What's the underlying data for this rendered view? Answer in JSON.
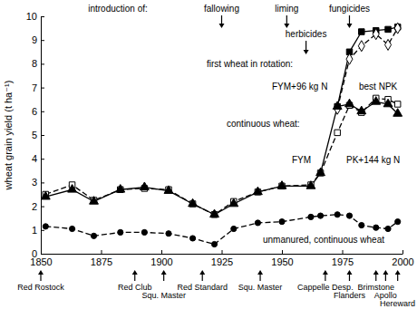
{
  "chart_data": {
    "type": "line",
    "y_label": "wheat grain yield (t ha⁻¹)",
    "xlim": [
      1850,
      2000
    ],
    "xticks": [
      1850,
      1875,
      1900,
      1925,
      1950,
      1975,
      2000
    ],
    "ylim": [
      0,
      10
    ],
    "yticks": [
      0,
      1,
      2,
      3,
      4,
      5,
      6,
      7,
      8,
      9,
      10
    ],
    "series": [
      {
        "name": "FYM+96 kg N",
        "color": "#000000",
        "marker": "square",
        "line_style": "solid",
        "x": [
          1973,
          1978,
          1983,
          1989,
          1994,
          1998
        ],
        "values": [
          6.2,
          8.5,
          9.35,
          9.4,
          9.45,
          9.55
        ]
      },
      {
        "name": "best NPK",
        "color": "#000000",
        "marker": "open-diamond",
        "line_style": "dashed",
        "x": [
          1973,
          1978,
          1983,
          1989,
          1994,
          1998
        ],
        "values": [
          6.1,
          8.2,
          8.75,
          9.25,
          8.8,
          9.5
        ]
      },
      {
        "name": "FYM",
        "color": "#000000",
        "marker": "open-square",
        "line_style": "dashed",
        "x": [
          1852,
          1863,
          1872,
          1883,
          1893,
          1903,
          1913,
          1922,
          1930,
          1940,
          1950,
          1962,
          1966,
          1973,
          1978,
          1983,
          1989,
          1994,
          1998
        ],
        "values": [
          2.5,
          2.9,
          2.25,
          2.7,
          2.75,
          2.7,
          2.1,
          1.65,
          2.2,
          2.6,
          2.85,
          2.9,
          3.4,
          5.1,
          6.25,
          5.95,
          6.55,
          6.5,
          6.3
        ]
      },
      {
        "name": "PK+144 kg N",
        "color": "#000000",
        "marker": "triangle",
        "line_style": "solid",
        "x": [
          1852,
          1863,
          1872,
          1883,
          1893,
          1903,
          1913,
          1922,
          1930,
          1940,
          1950,
          1962,
          1966,
          1973,
          1978,
          1983,
          1989,
          1994,
          1998
        ],
        "values": [
          2.4,
          2.7,
          2.2,
          2.7,
          2.8,
          2.65,
          2.1,
          1.65,
          2.1,
          2.6,
          2.85,
          2.85,
          3.4,
          6.2,
          6.3,
          6.0,
          6.4,
          6.3,
          5.9
        ]
      },
      {
        "name": "unmanured, continuous wheat",
        "color": "#000000",
        "marker": "circle",
        "line_style": "dashed",
        "x": [
          1852,
          1863,
          1872,
          1883,
          1893,
          1903,
          1913,
          1922,
          1930,
          1940,
          1950,
          1962,
          1966,
          1973,
          1978,
          1983,
          1989,
          1994,
          1998
        ],
        "values": [
          1.15,
          1.05,
          0.75,
          0.9,
          0.9,
          0.85,
          0.65,
          0.4,
          1.05,
          1.3,
          1.35,
          1.55,
          1.6,
          1.65,
          1.6,
          1.2,
          1.1,
          1.05,
          1.35
        ]
      }
    ],
    "group_labels": [
      "first wheat in rotation:",
      "continuous wheat:"
    ],
    "introductions": {
      "title": "introduction of:",
      "events": [
        {
          "label": "fallowing",
          "x": 1925
        },
        {
          "label": "liming",
          "x": 1952
        },
        {
          "label": "herbicides",
          "x": 1960
        },
        {
          "label": "fungicides",
          "x": 1978
        }
      ]
    },
    "varieties": [
      {
        "label": "Red Rostock",
        "x": 1850
      },
      {
        "label": "Red Club",
        "x": 1889
      },
      {
        "label": "Squ. Master",
        "x": 1901
      },
      {
        "label": "Red Standard",
        "x": 1917
      },
      {
        "label": "Squ. Master",
        "x": 1941
      },
      {
        "label": "Cappelle Desp.",
        "x": 1968
      },
      {
        "label": "Flanders",
        "x": 1978
      },
      {
        "label": "Brimstone",
        "x": 1989
      },
      {
        "label": "Apollo",
        "x": 1993
      },
      {
        "label": "Hereward",
        "x": 1998
      }
    ]
  }
}
